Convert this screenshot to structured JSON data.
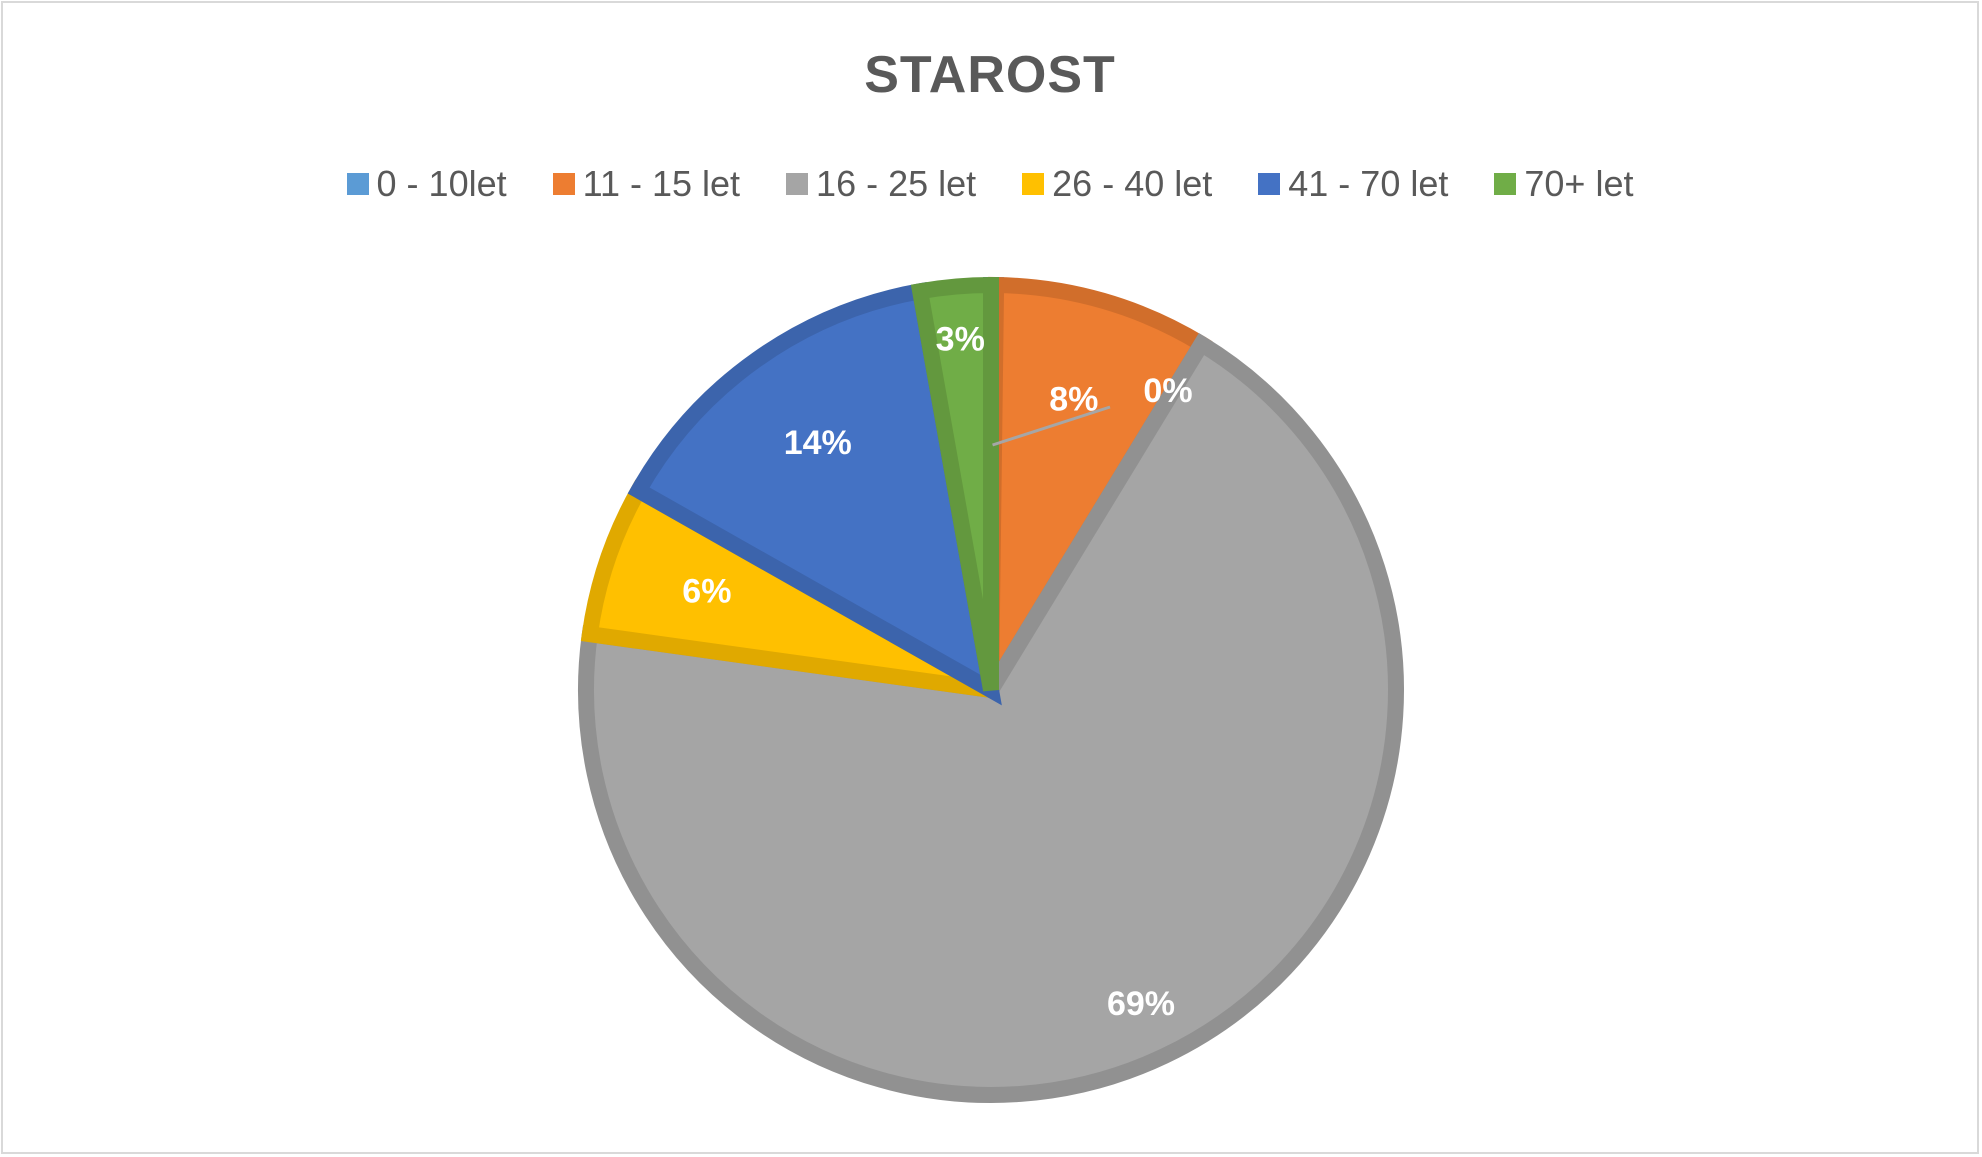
{
  "chart_data": {
    "type": "pie",
    "title": "STAROST",
    "categories": [
      "0 - 10let",
      "11 - 15 let",
      "16 - 25 let",
      "26 - 40 let",
      "41 - 70 let",
      "70+ let"
    ],
    "values": [
      0.2,
      8.5,
      68.5,
      6.0,
      14.0,
      2.8
    ],
    "data_labels": [
      "0%",
      "8%",
      "69%",
      "6%",
      "14%",
      "3%"
    ],
    "colors": [
      "#5b9bd5",
      "#ed7d31",
      "#a5a5a5",
      "#ffc000",
      "#4472c4",
      "#70ad47"
    ],
    "legend_placement": "top",
    "start_angle_deg": 0,
    "direction": "clockwise"
  }
}
